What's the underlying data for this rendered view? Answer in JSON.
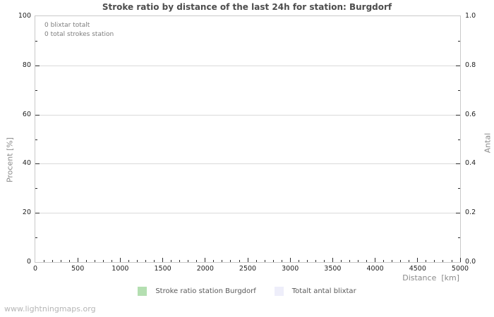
{
  "chart": {
    "title": "Stroke ratio by distance of the last 24h for station: Burgdorf",
    "annotations": [
      "0 blixtar totalt",
      "0 total strokes station"
    ],
    "axes": {
      "x": {
        "label": "Distance  [km]",
        "min": 0,
        "max": 5000,
        "major_step": 500,
        "minor_step": 100,
        "tick_labels": [
          "0",
          "500",
          "1000",
          "1500",
          "2000",
          "2500",
          "3000",
          "3500",
          "4000",
          "4500",
          "5000"
        ]
      },
      "y_left": {
        "label": "Procent   [%]",
        "min": 0,
        "max": 100,
        "major_step": 20,
        "minor_step": 10,
        "tick_labels": [
          "0",
          "20",
          "40",
          "60",
          "80",
          "100"
        ]
      },
      "y_right": {
        "label": "Antal",
        "min": 0,
        "max": 1,
        "major_step": 0.2,
        "minor_step": 0.1,
        "tick_labels": [
          "0.0",
          "0.2",
          "0.4",
          "0.6",
          "0.8",
          "1.0"
        ]
      }
    },
    "legend": [
      {
        "label": "Stroke ratio station Burgdorf",
        "color": "#b4dfb1"
      },
      {
        "label": "Totalt antal blixtar",
        "color": "#eeeefa"
      }
    ],
    "colors": {
      "grid": "#dadada",
      "frame": "#c9c9c9",
      "tick": "#2e2e2e",
      "title_text": "#4d4d4d",
      "axis_title_text": "#8a8a8a",
      "legend_green": "#b4dfb1",
      "legend_lavender": "#eeeefa"
    }
  },
  "footer": {
    "watermark": "www.lightningmaps.org"
  },
  "chart_data": {
    "type": "line",
    "title": "Stroke ratio by distance of the last 24h for station: Burgdorf",
    "xlabel": "Distance [km]",
    "ylabel_left": "Procent [%]",
    "ylabel_right": "Antal",
    "xlim": [
      0,
      5000
    ],
    "ylim_left": [
      0,
      100
    ],
    "ylim_right": [
      0,
      1
    ],
    "x_ticks": [
      0,
      500,
      1000,
      1500,
      2000,
      2500,
      3000,
      3500,
      4000,
      4500,
      5000
    ],
    "y_ticks_left": [
      0,
      20,
      40,
      60,
      80,
      100
    ],
    "y_ticks_right": [
      0.0,
      0.2,
      0.4,
      0.6,
      0.8,
      1.0
    ],
    "grid": "horizontal",
    "legend_position": "bottom-center",
    "annotations": [
      "0 blixtar totalt",
      "0 total strokes station"
    ],
    "series": [
      {
        "name": "Stroke ratio station Burgdorf",
        "axis": "left",
        "color": "#b4dfb1",
        "x": [],
        "values": []
      },
      {
        "name": "Totalt antal blixtar",
        "axis": "right",
        "color": "#eeeefa",
        "x": [],
        "values": []
      }
    ],
    "note_visible_state": "empty plot, zero strokes recorded"
  }
}
